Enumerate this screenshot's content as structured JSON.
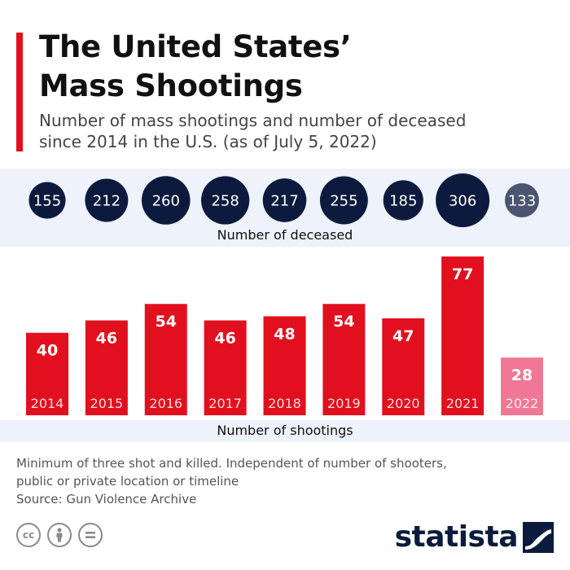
{
  "header": {
    "title_line1": "The United States’",
    "title_line2": "Mass Shootings",
    "subtitle_line1": "Number of mass shootings and number of deceased",
    "subtitle_line2": "since 2014 in the U.S. (as of July 5, 2022)"
  },
  "chart_data": {
    "type": "bar",
    "title": "The United States’ Mass Shootings",
    "subtitle": "Number of mass shootings and number of deceased since 2014 in the U.S. (as of July 5, 2022)",
    "categories": [
      "2014",
      "2015",
      "2016",
      "2017",
      "2018",
      "2019",
      "2020",
      "2021",
      "2022"
    ],
    "series": [
      {
        "name": "Number of shootings",
        "values": [
          40,
          46,
          54,
          46,
          48,
          54,
          47,
          77,
          28
        ]
      },
      {
        "name": "Number of deceased",
        "values": [
          155,
          212,
          260,
          258,
          217,
          255,
          185,
          306,
          133
        ]
      }
    ],
    "xlabel": "",
    "ylabel": "",
    "ylim": [
      0,
      77
    ],
    "colors": {
      "bar": "#e2101f",
      "bar_partial": "#f07894",
      "circle": "#0c1b3d",
      "circle_partial": "#4a5670"
    }
  },
  "labels": {
    "deceased": "Number of deceased",
    "shootings": "Number of shootings"
  },
  "footer": {
    "note_line1": "Minimum of three shot and killed. Independent of number of shooters,",
    "note_line2": "public or private location or timeline",
    "source": "Source: Gun Violence Archive",
    "cc_icons": [
      "cc-icon",
      "attribution-icon",
      "no-derivatives-icon"
    ],
    "brand": "statista"
  }
}
